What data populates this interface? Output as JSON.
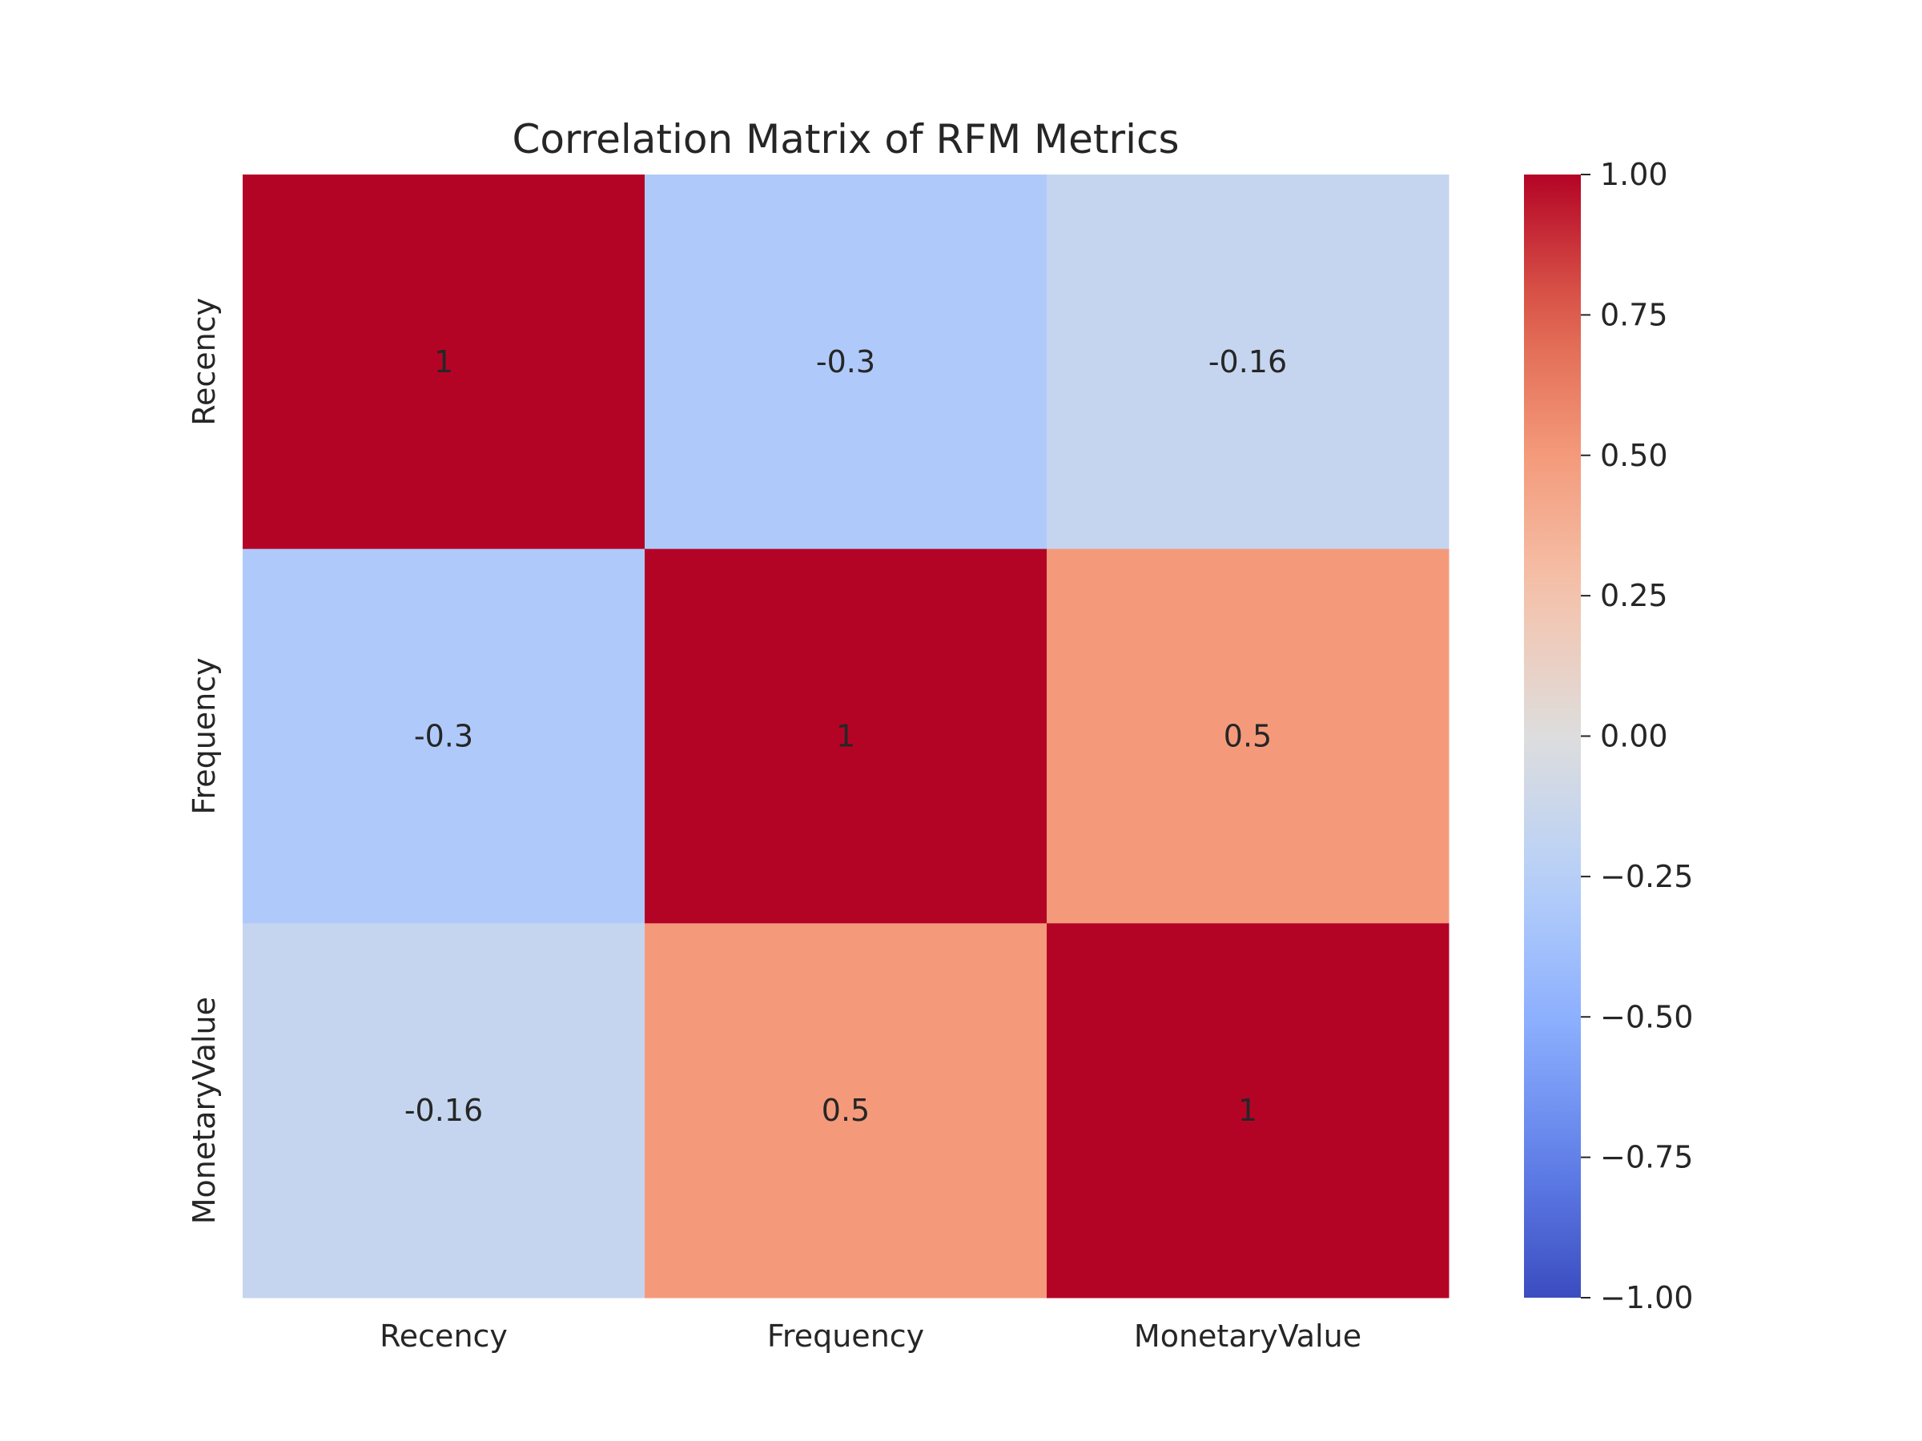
{
  "chart_data": {
    "type": "heatmap",
    "title": "Correlation Matrix of RFM Metrics",
    "xlabel": "",
    "ylabel": "",
    "x_categories": [
      "Recency",
      "Frequency",
      "MonetaryValue"
    ],
    "y_categories": [
      "Recency",
      "Frequency",
      "MonetaryValue"
    ],
    "values": [
      [
        1,
        -0.3,
        -0.16
      ],
      [
        -0.3,
        1,
        0.5
      ],
      [
        -0.16,
        0.5,
        1
      ]
    ],
    "cell_labels": [
      [
        "1",
        "-0.3",
        "-0.16"
      ],
      [
        "-0.3",
        "1",
        "0.5"
      ],
      [
        "-0.16",
        "0.5",
        "1"
      ]
    ],
    "colormap": "coolwarm",
    "vmin": -1,
    "vmax": 1,
    "colorbar": {
      "ticks": [
        1.0,
        0.75,
        0.5,
        0.25,
        0.0,
        -0.25,
        -0.5,
        -0.75,
        -1.0
      ],
      "tick_labels": [
        "1.00",
        "0.75",
        "0.50",
        "0.25",
        "0.00",
        "−0.25",
        "−0.50",
        "−0.75",
        "−1.00"
      ]
    },
    "grid": false,
    "colors": {
      "high": "#b40426",
      "mid": "#dddddd",
      "low": "#3b4cc0"
    }
  }
}
